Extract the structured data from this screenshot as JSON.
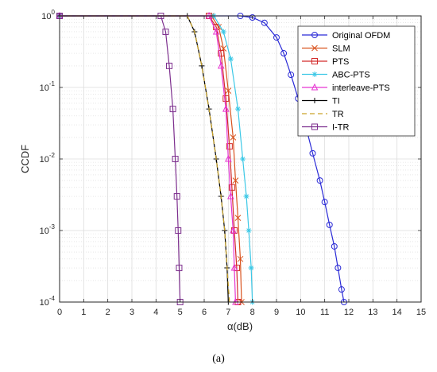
{
  "caption": "(a)",
  "chart_data": {
    "type": "line",
    "xlabel": "α(dB)",
    "ylabel": "CCDF",
    "xlim": [
      0,
      15
    ],
    "ylim": [
      0.0001,
      1
    ],
    "yscale": "log",
    "x_ticks": [
      "0",
      "1",
      "2",
      "3",
      "4",
      "5",
      "6",
      "7",
      "8",
      "9",
      "10",
      "11",
      "12",
      "13",
      "14",
      "15"
    ],
    "y_ticks": [
      {
        "value": 0.0001,
        "base": "10",
        "exp": "-4"
      },
      {
        "value": 0.001,
        "base": "10",
        "exp": "-3"
      },
      {
        "value": 0.01,
        "base": "10",
        "exp": "-2"
      },
      {
        "value": 0.1,
        "base": "10",
        "exp": "-1"
      },
      {
        "value": 1,
        "base": "10",
        "exp": "0"
      }
    ],
    "grid": true,
    "minor_grid": true,
    "legend_position": "top-right",
    "series": [
      {
        "name": "Original OFDM",
        "color": "#2a2ad6",
        "marker": "circle",
        "dash": "",
        "x": [
          0,
          7.5,
          8.0,
          8.5,
          9.0,
          9.3,
          9.6,
          9.9,
          10.2,
          10.5,
          10.8,
          11.0,
          11.2,
          11.4,
          11.55,
          11.7,
          11.8
        ],
        "y": [
          1,
          1,
          0.95,
          0.8,
          0.5,
          0.3,
          0.15,
          0.07,
          0.03,
          0.012,
          0.005,
          0.0025,
          0.0012,
          0.0006,
          0.0003,
          0.00015,
          0.0001
        ]
      },
      {
        "name": "SLM",
        "color": "#d9531e",
        "marker": "x",
        "dash": "",
        "x": [
          0,
          6.3,
          6.6,
          6.8,
          7.0,
          7.2,
          7.3,
          7.4,
          7.5,
          7.55
        ],
        "y": [
          1,
          1,
          0.7,
          0.35,
          0.09,
          0.02,
          0.005,
          0.0015,
          0.0004,
          0.0001
        ]
      },
      {
        "name": "PTS",
        "color": "#d32b2b",
        "marker": "square",
        "dash": "",
        "x": [
          0,
          6.2,
          6.5,
          6.7,
          6.9,
          7.05,
          7.15,
          7.25,
          7.35,
          7.4
        ],
        "y": [
          1,
          1,
          0.7,
          0.3,
          0.07,
          0.015,
          0.004,
          0.001,
          0.0003,
          0.0001
        ]
      },
      {
        "name": "ABC-PTS",
        "color": "#3cc8e6",
        "marker": "asterisk",
        "dash": "",
        "x": [
          0,
          6.4,
          6.8,
          7.1,
          7.4,
          7.6,
          7.75,
          7.85,
          7.95,
          8.0
        ],
        "y": [
          1,
          1,
          0.6,
          0.25,
          0.05,
          0.01,
          0.003,
          0.001,
          0.0003,
          0.0001
        ]
      },
      {
        "name": "interleave-PTS",
        "color": "#e636d2",
        "marker": "triangle",
        "dash": "",
        "x": [
          0,
          6.2,
          6.5,
          6.7,
          6.9,
          7.0,
          7.1,
          7.2,
          7.25,
          7.3
        ],
        "y": [
          1,
          1,
          0.6,
          0.2,
          0.05,
          0.01,
          0.003,
          0.001,
          0.0003,
          0.0001
        ]
      },
      {
        "name": "TI",
        "color": "#000000",
        "marker": "plus",
        "dash": "",
        "x": [
          0,
          5.3,
          5.6,
          5.9,
          6.2,
          6.5,
          6.7,
          6.85,
          6.95,
          7.0
        ],
        "y": [
          1,
          1,
          0.6,
          0.2,
          0.05,
          0.01,
          0.003,
          0.001,
          0.0003,
          0.0001
        ]
      },
      {
        "name": "TR",
        "color": "#c9a227",
        "marker": "none",
        "dash": "6,4",
        "x": [
          0,
          5.3,
          5.6,
          5.9,
          6.2,
          6.5,
          6.7,
          6.85,
          6.95,
          7.05
        ],
        "y": [
          1,
          1,
          0.6,
          0.2,
          0.05,
          0.01,
          0.003,
          0.001,
          0.0003,
          0.0001
        ]
      },
      {
        "name": "I-TR",
        "color": "#7d2f8e",
        "marker": "square",
        "dash": "",
        "x": [
          0,
          4.2,
          4.4,
          4.55,
          4.7,
          4.8,
          4.87,
          4.92,
          4.96,
          5.0
        ],
        "y": [
          1,
          1,
          0.6,
          0.2,
          0.05,
          0.01,
          0.003,
          0.001,
          0.0003,
          0.0001
        ]
      }
    ]
  }
}
